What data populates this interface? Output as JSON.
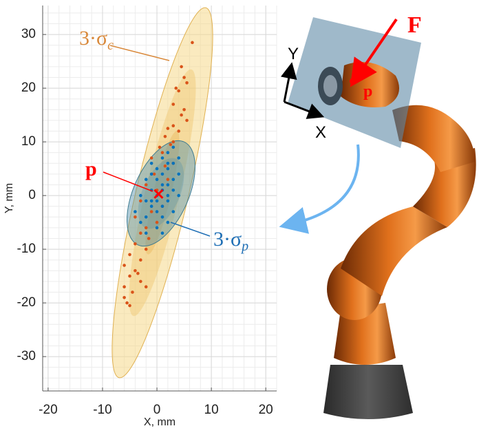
{
  "chart_data": {
    "type": "scatter",
    "xlabel": "X, mm",
    "ylabel": "Y, mm",
    "xlim": [
      -21,
      22
    ],
    "ylim": [
      -36.4,
      35.4
    ],
    "xticks": [
      -20,
      -10,
      0,
      10,
      20
    ],
    "yticks": [
      -30,
      -20,
      -10,
      0,
      10,
      20,
      30
    ],
    "grid": true,
    "minor_grid_step": 2,
    "series": [
      {
        "color": "#d95319",
        "x": [
          6.5,
          4.5,
          5,
          3.5,
          5.5,
          4,
          3,
          5,
          4.5,
          5.5,
          3,
          2,
          4,
          1.5,
          3,
          0.5,
          2.5,
          1,
          -1,
          1.5,
          3,
          -0.5,
          2,
          -2,
          0,
          -3,
          1,
          -1,
          -4,
          0,
          -2,
          -3,
          -1.5,
          -4,
          -2,
          -5,
          -3,
          -6,
          -4,
          -5,
          -3,
          -6,
          -4.5,
          -5,
          -5.5,
          -6,
          -2,
          -3.5
        ],
        "values": [
          28.5,
          24,
          22,
          20,
          21,
          19.5,
          17,
          16,
          15,
          14,
          13,
          12.5,
          12,
          11,
          10,
          9,
          9.5,
          8,
          7,
          5.5,
          6,
          4,
          3,
          2,
          1,
          -1,
          -2,
          -3,
          -4,
          -5,
          -6,
          -7,
          -8,
          -9,
          -10,
          -11,
          -12,
          -13,
          -14,
          -15,
          -16,
          -17,
          -18,
          -20.5,
          -20,
          -19,
          -17,
          -14.5
        ]
      },
      {
        "color": "#0072bd",
        "x": [
          -2,
          0,
          1,
          -1,
          2,
          0,
          1,
          -1,
          2,
          3,
          0,
          1,
          -2,
          2,
          3,
          1,
          4,
          2,
          -1,
          0,
          3,
          -3,
          -2,
          1,
          4,
          -3,
          2,
          0,
          1,
          -1,
          4,
          3,
          -2,
          0,
          2,
          1,
          -4,
          3,
          -1,
          2
        ],
        "values": [
          -4,
          -6,
          -4,
          -2,
          -1,
          0,
          1,
          1,
          2,
          3,
          3,
          4,
          3,
          5,
          6,
          7,
          7,
          8,
          6,
          -1,
          -3,
          -5,
          -7,
          -7,
          0,
          0,
          -5,
          5,
          2,
          -1,
          4,
          9,
          -1,
          -3,
          0,
          -2,
          -3,
          1,
          4,
          6
        ]
      }
    ],
    "annotations": [
      {
        "text": "3·σ",
        "sub": "c",
        "color": "#d9893b"
      },
      {
        "text": "3·σ",
        "sub": "p",
        "color": "#1f6fb5"
      },
      {
        "text": "p",
        "x": 0.3,
        "y": 0.3,
        "color": "#ff0000"
      }
    ]
  },
  "illustration": {
    "labels": [
      "F",
      "p",
      "X",
      "Y"
    ]
  }
}
